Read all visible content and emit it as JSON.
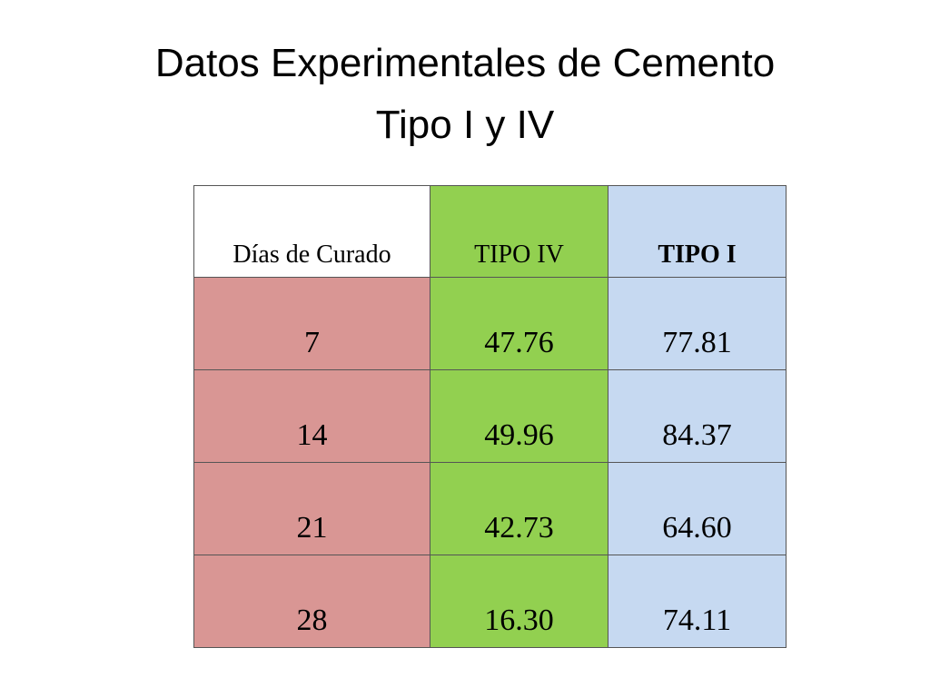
{
  "title": {
    "lines": [
      "Datos Experimentales de Cemento",
      "Tipo I y IV"
    ]
  },
  "table": {
    "header": [
      "Días de Curado",
      "TIPO IV",
      "TIPO I"
    ],
    "rows": [
      [
        "7",
        "47.76",
        "77.81"
      ],
      [
        "14",
        "49.96",
        "84.37"
      ],
      [
        "21",
        "42.73",
        "64.60"
      ],
      [
        "28",
        "16.30",
        "74.11"
      ]
    ]
  }
}
